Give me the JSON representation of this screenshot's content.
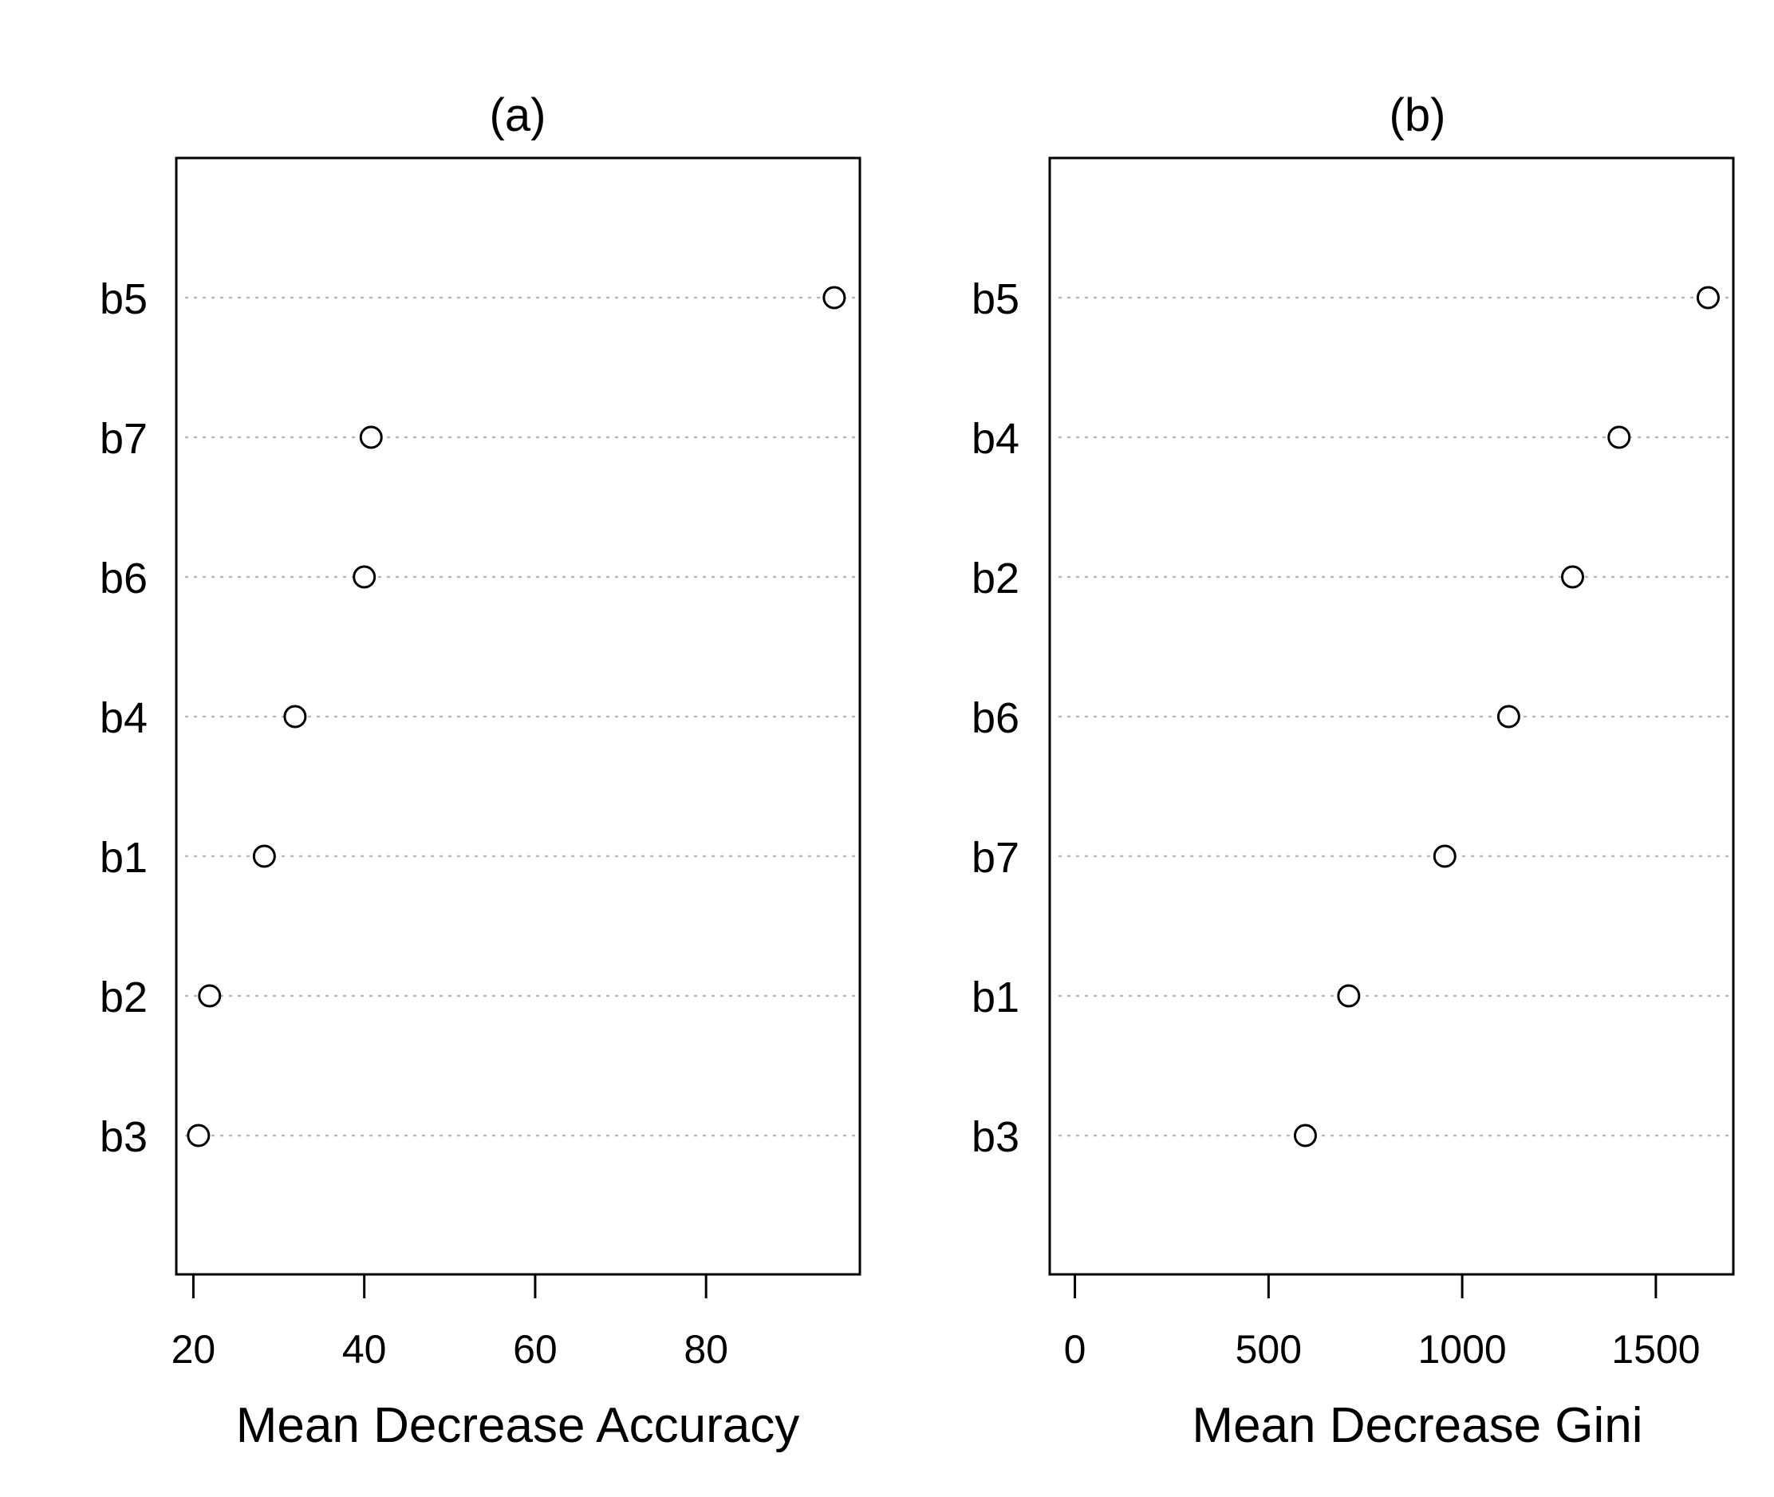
{
  "chart_data": [
    {
      "type": "scatter",
      "title": "(a)",
      "xlabel": "Mean Decrease Accuracy",
      "ylabel": "",
      "xlim": [
        18,
        98
      ],
      "xticks": [
        20,
        40,
        60,
        80
      ],
      "xtick_labels": [
        "20",
        "40",
        "60",
        "80"
      ],
      "categories": [
        "b5",
        "b7",
        "b6",
        "b4",
        "b1",
        "b2",
        "b3"
      ],
      "values": [
        95.0,
        40.8,
        40.0,
        31.9,
        28.3,
        21.9,
        20.6
      ],
      "grid": "dotted horizontal lines at each category",
      "legend": "none"
    },
    {
      "type": "scatter",
      "title": "(b)",
      "xlabel": "Mean Decrease Gini",
      "ylabel": "",
      "xlim": [
        -65,
        1700
      ],
      "xticks": [
        0,
        500,
        1000,
        1500
      ],
      "xtick_labels": [
        "0",
        "500",
        "1000",
        "1500"
      ],
      "categories": [
        "b5",
        "b4",
        "b2",
        "b6",
        "b7",
        "b1",
        "b3"
      ],
      "values": [
        1635,
        1405,
        1285,
        1120,
        955,
        707,
        595
      ],
      "grid": "dotted horizontal lines at each category",
      "legend": "none"
    }
  ]
}
